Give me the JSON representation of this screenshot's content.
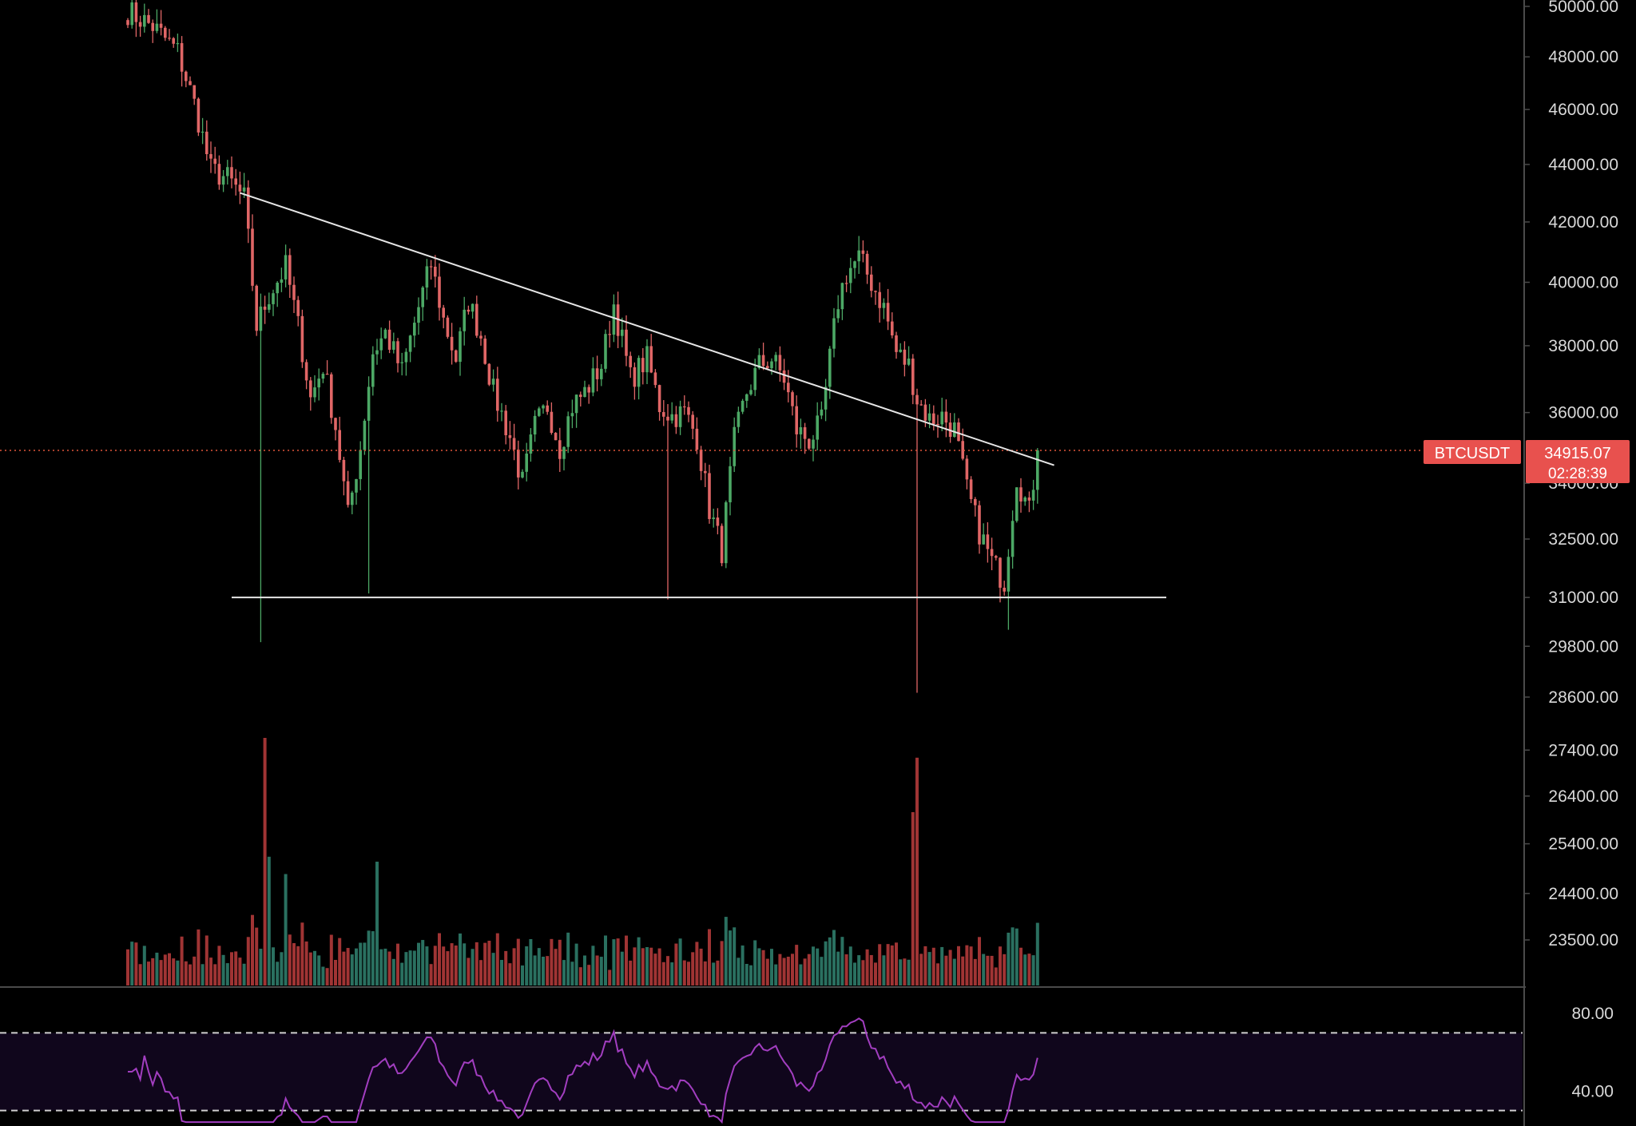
{
  "colors": {
    "background": "#000000",
    "up": "#4ca865",
    "down": "#e06666",
    "up_volume": "#2a7060",
    "down_volume": "#a03434",
    "axis_text": "#d9d9d9",
    "axis_line": "#4a4a4a",
    "trendline": "#e6e6e6",
    "last_price_line": "#e0563b",
    "price_badge": "#e8514e",
    "rsi_line": "#a23ec0",
    "rsi_band": "#10061c",
    "rsi_dashes": "#cfcfcf"
  },
  "price_axis": {
    "ticks": [
      {
        "value": 50000,
        "label": "50000.00"
      },
      {
        "value": 48000,
        "label": "48000.00"
      },
      {
        "value": 46000,
        "label": "46000.00"
      },
      {
        "value": 44000,
        "label": "44000.00"
      },
      {
        "value": 42000,
        "label": "42000.00"
      },
      {
        "value": 40000,
        "label": "40000.00"
      },
      {
        "value": 38000,
        "label": "38000.00"
      },
      {
        "value": 36000,
        "label": "36000.00"
      },
      {
        "value": 34000,
        "label": "34000.00"
      },
      {
        "value": 32500,
        "label": "32500.00"
      },
      {
        "value": 31000,
        "label": "31000.00"
      },
      {
        "value": 29800,
        "label": "29800.00"
      },
      {
        "value": 28600,
        "label": "28600.00"
      },
      {
        "value": 27400,
        "label": "27400.00"
      },
      {
        "value": 26400,
        "label": "26400.00"
      },
      {
        "value": 25400,
        "label": "25400.00"
      },
      {
        "value": 24400,
        "label": "24400.00"
      },
      {
        "value": 23500,
        "label": "23500.00"
      }
    ],
    "scale": "log"
  },
  "price_badge": {
    "symbol": "BTCUSDT",
    "price": "34915.07",
    "countdown": "02:28:39",
    "price_value": 34915.07
  },
  "rsi_axis": {
    "ticks": [
      {
        "value": 80,
        "label": "80.00"
      },
      {
        "value": 40,
        "label": "40.00"
      }
    ],
    "band": [
      30,
      70
    ],
    "range": [
      22,
      92
    ]
  },
  "chart_data": {
    "type": "candlestick",
    "symbol": "BTCUSDT",
    "bars": 220,
    "anchors": [
      [
        0,
        49800
      ],
      [
        6,
        49200
      ],
      [
        12,
        48200
      ],
      [
        16,
        46200
      ],
      [
        20,
        43800
      ],
      [
        24,
        43500
      ],
      [
        28,
        42800
      ],
      [
        31,
        38600
      ],
      [
        34,
        39600
      ],
      [
        38,
        40500
      ],
      [
        41,
        38600
      ],
      [
        44,
        36400
      ],
      [
        47,
        37400
      ],
      [
        50,
        35600
      ],
      [
        53,
        33100
      ],
      [
        56,
        35000
      ],
      [
        59,
        37800
      ],
      [
        62,
        38400
      ],
      [
        66,
        37200
      ],
      [
        70,
        39200
      ],
      [
        73,
        40600
      ],
      [
        76,
        38800
      ],
      [
        79,
        37600
      ],
      [
        82,
        39400
      ],
      [
        85,
        38300
      ],
      [
        88,
        36600
      ],
      [
        92,
        35300
      ],
      [
        95,
        34000
      ],
      [
        98,
        35600
      ],
      [
        101,
        36200
      ],
      [
        104,
        35000
      ],
      [
        107,
        36200
      ],
      [
        110,
        36600
      ],
      [
        114,
        37400
      ],
      [
        117,
        39300
      ],
      [
        121,
        37000
      ],
      [
        125,
        37600
      ],
      [
        128,
        36200
      ],
      [
        131,
        35900
      ],
      [
        134,
        36000
      ],
      [
        137,
        35300
      ],
      [
        140,
        33300
      ],
      [
        143,
        32200
      ],
      [
        146,
        35200
      ],
      [
        149,
        36600
      ],
      [
        152,
        37400
      ],
      [
        155,
        37600
      ],
      [
        158,
        37000
      ],
      [
        161,
        35500
      ],
      [
        164,
        35200
      ],
      [
        167,
        35700
      ],
      [
        169,
        37600
      ],
      [
        171,
        39400
      ],
      [
        173,
        40300
      ],
      [
        176,
        40800
      ],
      [
        179,
        40000
      ],
      [
        182,
        39200
      ],
      [
        185,
        37800
      ],
      [
        188,
        37400
      ],
      [
        190,
        36400
      ],
      [
        193,
        35800
      ],
      [
        196,
        35900
      ],
      [
        199,
        35500
      ],
      [
        202,
        33800
      ],
      [
        205,
        32700
      ],
      [
        208,
        31900
      ],
      [
        211,
        31400
      ],
      [
        214,
        34200
      ],
      [
        217,
        33200
      ],
      [
        219,
        34900
      ]
    ],
    "special_wicks": [
      {
        "bar": 32,
        "low": 29900
      },
      {
        "bar": 130,
        "low": 30950
      },
      {
        "bar": 190,
        "low": 28700
      },
      {
        "bar": 58,
        "low": 31100
      },
      {
        "bar": 212,
        "low": 30200
      }
    ],
    "trendlines": [
      {
        "name": "descending resistance",
        "from": {
          "bar": 27,
          "price": 43000
        },
        "to": {
          "bar": 223,
          "price": 34500
        }
      },
      {
        "name": "horizontal support",
        "from": {
          "bar": 25,
          "price": 31000
        },
        "to": {
          "bar": 250,
          "price": 31000
        }
      }
    ],
    "volume_spikes": [
      {
        "bar": 33,
        "value": 1.0
      },
      {
        "bar": 34,
        "value": 0.52
      },
      {
        "bar": 189,
        "value": 0.7
      },
      {
        "bar": 190,
        "value": 0.92
      },
      {
        "bar": 60,
        "value": 0.5
      },
      {
        "bar": 38,
        "value": 0.45
      }
    ],
    "last_price": 34915.07,
    "rsi_range": [
      22,
      92
    ]
  }
}
